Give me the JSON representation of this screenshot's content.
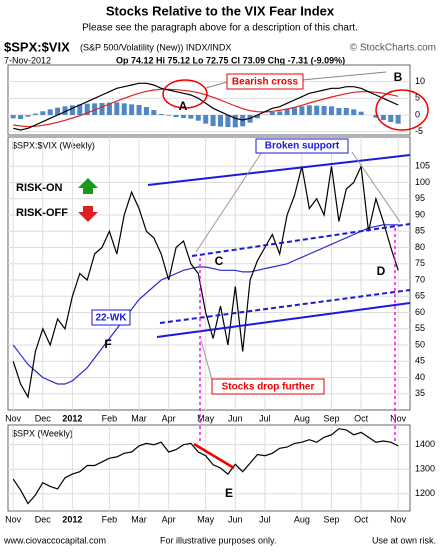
{
  "header": {
    "title": "Stocks Relative to the VIX Fear Index",
    "subtitle": "Please see the paragraph above for a description of this chart.",
    "symbol": "$SPX:$VIX",
    "description": "(S&P 500/Volatility (New)) INDX/INDX",
    "copyright": "© StockCharts.com",
    "date": "7-Nov-2012",
    "quote": "Op 74.12 Hi 75.12 Lo 72.75 Cl 73.09 Chg -7.31 (-9.09%)"
  },
  "footer": {
    "site": "www.ciovaccocapital.com",
    "note": "For illustrative purposes only.",
    "risk": "Use at own risk."
  },
  "chart_data": [
    {
      "type": "line",
      "xlim": [
        -0.7,
        53.6
      ],
      "ylim": [
        -6,
        15
      ],
      "yticks": [
        10,
        5,
        0,
        -5
      ],
      "grid": true,
      "annotations": [
        "Bearish cross",
        "A",
        "B"
      ],
      "series": [
        {
          "kind": "bar",
          "color": "#4f86c6",
          "values": [
            -1,
            -1.2,
            -0.5,
            0.4,
            1.1,
            1.7,
            2.2,
            2.6,
            2.9,
            3.2,
            3.4,
            3.5,
            3.6,
            3.7,
            3.8,
            3.5,
            3.2,
            3,
            2.4,
            1.5,
            0.3,
            -0.2,
            -0.6,
            -0.9,
            -1.1,
            -1.7,
            -2.6,
            -3.3,
            -3.5,
            -3.6,
            -3.7,
            -3.4,
            -2.3,
            -1,
            0.1,
            0.9,
            1.1,
            1.7,
            2.2,
            2.6,
            2.9,
            2.8,
            2.7,
            2.6,
            2.1,
            2.1,
            1.7,
            1,
            0,
            -0.8,
            -1.5,
            -2.1,
            -2.6
          ]
        },
        {
          "kind": "line",
          "color": "#e02020",
          "values": [
            -3,
            -3.3,
            -3.5,
            -3.4,
            -3.1,
            -2.7,
            -2.2,
            -1.6,
            -0.9,
            -0.2,
            0.6,
            1.5,
            2.4,
            3.3,
            4.2,
            5,
            5.8,
            6.5,
            7.1,
            7.5,
            7.7,
            7.7,
            7.6,
            7.4,
            7.1,
            6.7,
            6.1,
            5.3,
            4.5,
            3.6,
            2.7,
            1.9,
            1.3,
            1,
            0.9,
            1.1,
            1.4,
            1.8,
            2.3,
            2.9,
            3.6,
            4.2,
            4.8,
            5.4,
            5.9,
            6.4,
            6.8,
            7,
            7,
            6.8,
            6.5,
            6.1,
            5.6
          ]
        },
        {
          "kind": "line",
          "color": "#000000",
          "values": [
            -4,
            -4.5,
            -4,
            -3,
            -2,
            -1,
            0,
            1,
            2,
            3,
            4,
            5,
            6,
            7,
            8,
            8.5,
            9,
            9.5,
            9.5,
            9,
            8,
            7.5,
            7,
            6.5,
            6,
            5,
            3.5,
            2,
            1,
            0,
            -1,
            -1.5,
            -1,
            0,
            1,
            2,
            2.5,
            3.5,
            4.5,
            5.5,
            6.5,
            7,
            7.5,
            8,
            8,
            8.5,
            8.5,
            8,
            7,
            6,
            5,
            4,
            3
          ]
        }
      ]
    },
    {
      "type": "line",
      "label": "$SPX:$VIX (Weekly)",
      "xlim": [
        -0.7,
        53.6
      ],
      "ylim": [
        30,
        114
      ],
      "yticks": [
        105,
        100,
        95,
        90,
        85,
        80,
        75,
        70,
        65,
        60,
        55,
        50,
        45,
        40,
        35
      ],
      "grid": true,
      "xticks": [
        {
          "value": 0,
          "label": "Nov"
        },
        {
          "value": 4,
          "label": "Dec"
        },
        {
          "value": 8,
          "label": "2012"
        },
        {
          "value": 13,
          "label": "Feb"
        },
        {
          "value": 17,
          "label": "Mar"
        },
        {
          "value": 21,
          "label": "Apr"
        },
        {
          "value": 26,
          "label": "May"
        },
        {
          "value": 30,
          "label": "Jun"
        },
        {
          "value": 34,
          "label": "Jul"
        },
        {
          "value": 39,
          "label": "Aug"
        },
        {
          "value": 43,
          "label": "Sep"
        },
        {
          "value": 47,
          "label": "Oct"
        },
        {
          "value": 52,
          "label": "Nov"
        }
      ],
      "annotations": [
        "Broken support",
        "RISK-ON",
        "RISK-OFF",
        "C",
        "D",
        "22-WK",
        "F",
        "Stocks drop further"
      ],
      "series": [
        {
          "kind": "line",
          "color": "#2a2ad0",
          "values": [
            50,
            47,
            44,
            42,
            40,
            39,
            38,
            38,
            39,
            41,
            43,
            46,
            49,
            52,
            55,
            58,
            61,
            64,
            66,
            68,
            70,
            71,
            72,
            73,
            73.5,
            74,
            74,
            73.5,
            73,
            73,
            73,
            72.5,
            72.5,
            73,
            73.5,
            74,
            74.5,
            75,
            76,
            77,
            78,
            79,
            80,
            81,
            82,
            83,
            84,
            85,
            86,
            86.5,
            87,
            87,
            87
          ]
        },
        {
          "kind": "line",
          "color": "#000000",
          "values": [
            45,
            38,
            34,
            48,
            55,
            50,
            58,
            55,
            65,
            72,
            70,
            78,
            80,
            85,
            78,
            90,
            97,
            92,
            85,
            83,
            78,
            70,
            80,
            82,
            75,
            72,
            60,
            52,
            62,
            50,
            68,
            48,
            70,
            76,
            80,
            84,
            78,
            90,
            96,
            105,
            92,
            95,
            90,
            105,
            88,
            98,
            100,
            105,
            85,
            95,
            88,
            80,
            73
          ]
        }
      ]
    },
    {
      "type": "line",
      "label": "$SPX (Weekly)",
      "xlim": [
        -0.7,
        53.6
      ],
      "ylim": [
        1130,
        1480
      ],
      "yticks": [
        1400,
        1300,
        1200
      ],
      "grid": true,
      "xticks": [
        {
          "value": 0,
          "label": "Nov"
        },
        {
          "value": 4,
          "label": "Dec"
        },
        {
          "value": 8,
          "label": "2012"
        },
        {
          "value": 13,
          "label": "Feb"
        },
        {
          "value": 17,
          "label": "Mar"
        },
        {
          "value": 21,
          "label": "Apr"
        },
        {
          "value": 26,
          "label": "May"
        },
        {
          "value": 30,
          "label": "Jun"
        },
        {
          "value": 34,
          "label": "Jul"
        },
        {
          "value": 39,
          "label": "Aug"
        },
        {
          "value": 43,
          "label": "Sep"
        },
        {
          "value": 47,
          "label": "Oct"
        },
        {
          "value": 52,
          "label": "Nov"
        }
      ],
      "annotations": [
        "E"
      ],
      "series": [
        {
          "kind": "line",
          "color": "#000000",
          "values": [
            1260,
            1215,
            1160,
            1195,
            1245,
            1230,
            1220,
            1265,
            1280,
            1290,
            1315,
            1315,
            1330,
            1345,
            1350,
            1365,
            1370,
            1395,
            1405,
            1400,
            1410,
            1370,
            1380,
            1400,
            1405,
            1370,
            1355,
            1318,
            1305,
            1280,
            1320,
            1290,
            1325,
            1360,
            1355,
            1365,
            1385,
            1390,
            1405,
            1410,
            1420,
            1410,
            1430,
            1440,
            1465,
            1460,
            1440,
            1450,
            1430,
            1410,
            1415,
            1410,
            1395
          ]
        }
      ]
    }
  ]
}
